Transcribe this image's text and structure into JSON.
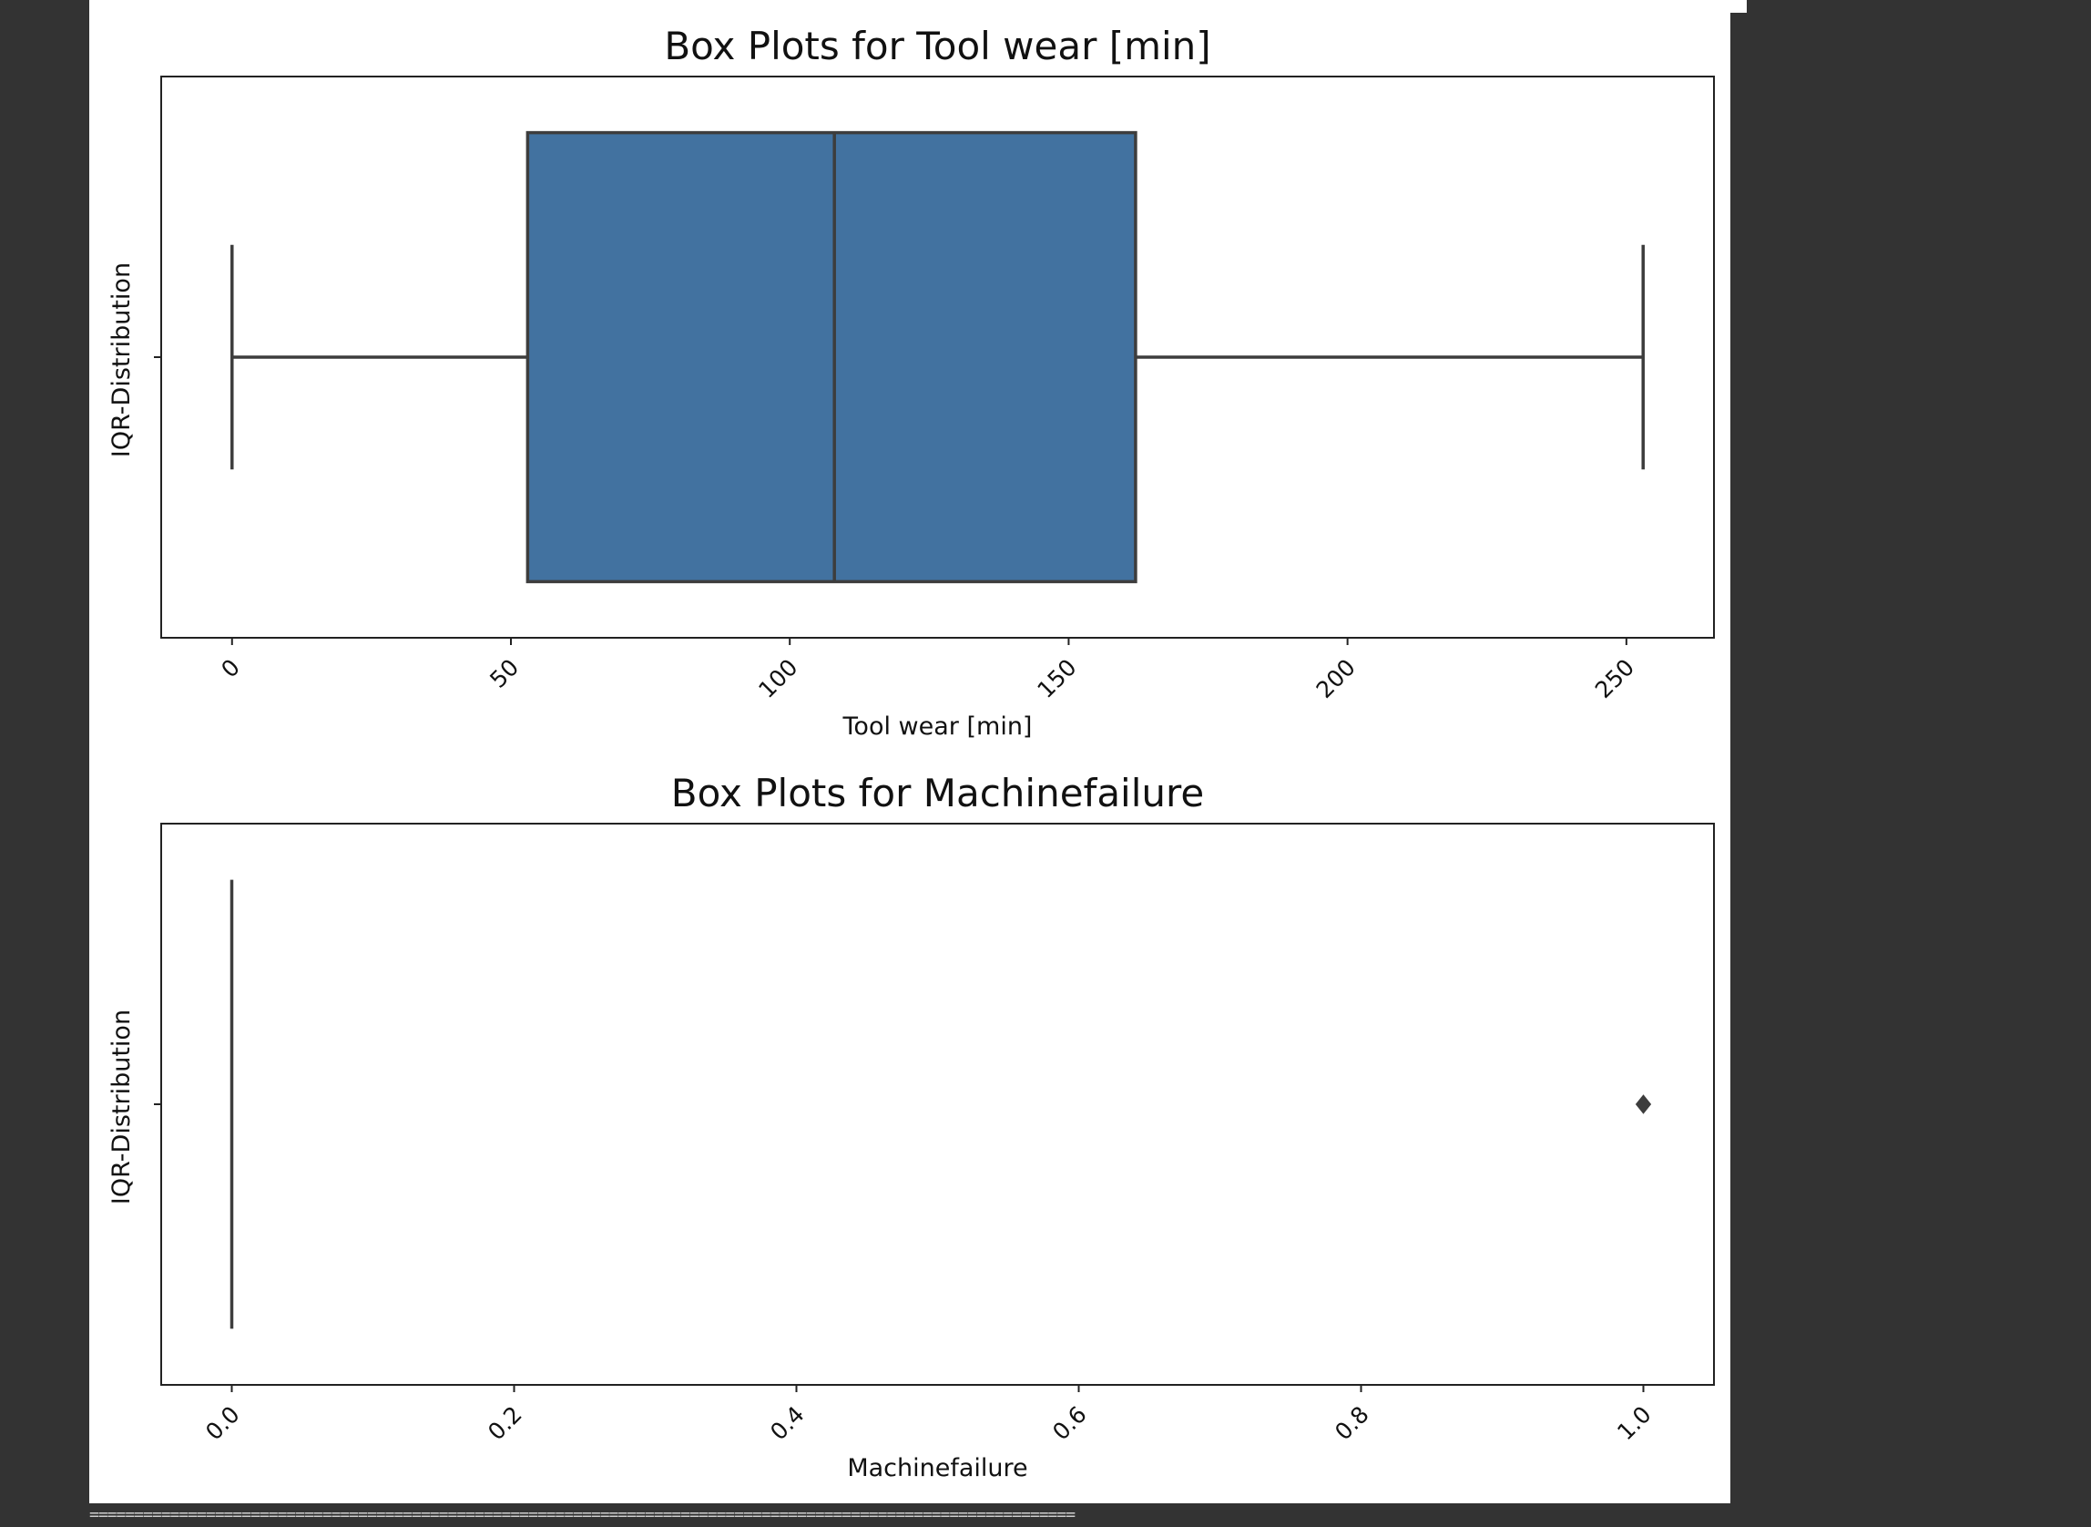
{
  "chart_data": [
    {
      "type": "box",
      "title": "Box Plots for Tool wear [min]",
      "xlabel": "Tool wear [min]",
      "ylabel": "IQR-Distribution",
      "xlim": [
        -12.7,
        265.7
      ],
      "xticks": [
        0,
        50,
        100,
        150,
        200,
        250
      ],
      "xtick_labels": [
        "0",
        "50",
        "100",
        "150",
        "200",
        "250"
      ],
      "box": {
        "whisker_low": 0,
        "q1": 53,
        "median": 108,
        "q3": 162,
        "whisker_high": 253
      },
      "outliers": [],
      "fill_color": "#4272a0",
      "line_color": "#3d3d3d"
    },
    {
      "type": "box",
      "title": "Box Plots for Machinefailure",
      "xlabel": "Machinefailure",
      "ylabel": "IQR-Distribution",
      "xlim": [
        -0.05,
        1.05
      ],
      "xticks": [
        0.0,
        0.2,
        0.4,
        0.6,
        0.8,
        1.0
      ],
      "xtick_labels": [
        "0.0",
        "0.2",
        "0.4",
        "0.6",
        "0.8",
        "1.0"
      ],
      "box": {
        "whisker_low": 0,
        "q1": 0,
        "median": 0,
        "q3": 0,
        "whisker_high": 0
      },
      "outliers": [
        1.0
      ],
      "fill_color": "#4272a0",
      "line_color": "#3d3d3d"
    }
  ],
  "separator": "=============================================================================================================="
}
